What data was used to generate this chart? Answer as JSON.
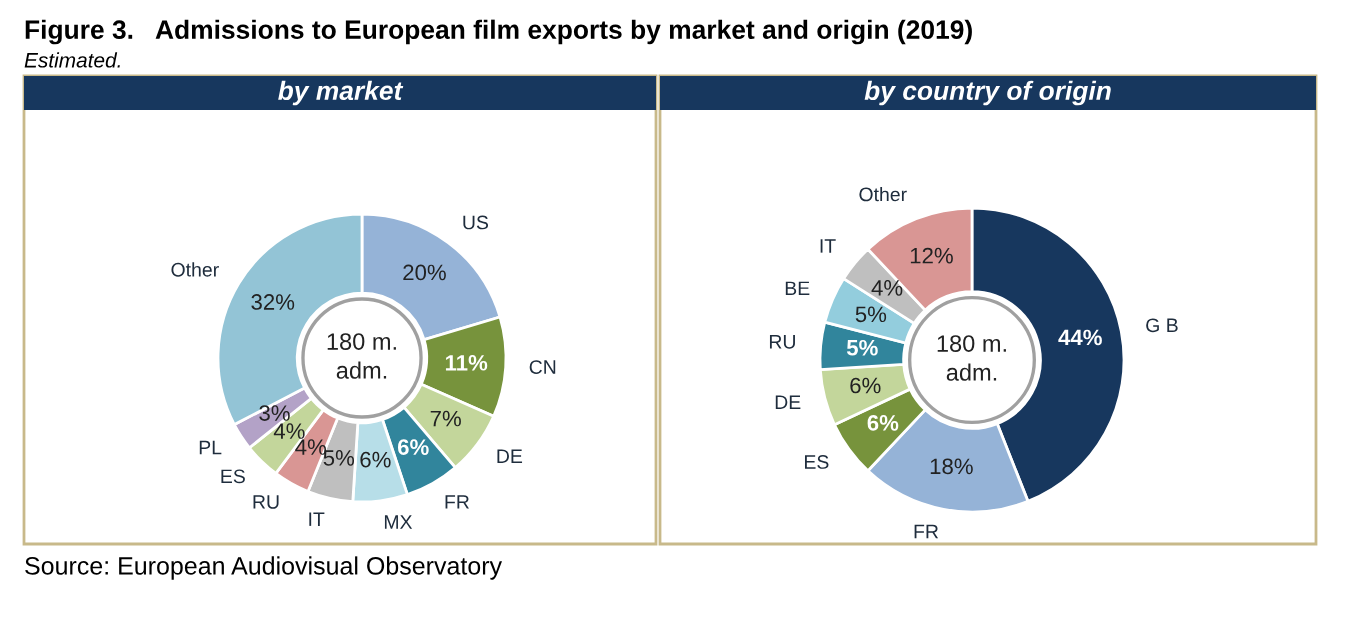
{
  "chart_data": [
    {
      "type": "donut",
      "title": "by market",
      "categories": [
        "US",
        "CN",
        "DE",
        "FR",
        "MX",
        "IT",
        "RU",
        "ES",
        "PL",
        "Other"
      ],
      "values": [
        20,
        11,
        7,
        6,
        6,
        5,
        4,
        4,
        3,
        32
      ],
      "value_labels": [
        "20%",
        "11%",
        "7%",
        "6%",
        "6%",
        "5%",
        "4%",
        "4%",
        "3%",
        "32%"
      ],
      "colors": [
        "#95b3d7",
        "#77933c",
        "#c3d69b",
        "#31859c",
        "#b7dee8",
        "#bfbfbf",
        "#d99694",
        "#c3d69b",
        "#b3a2c7",
        "#93c4d6"
      ],
      "annotations": [
        "Figure 3.   Admissions to European film exports by market and origin (2019)",
        "Estimated.",
        "Source: European Audiovisual Observatory",
        "180 m.\nadm."
      ]
    },
    {
      "type": "donut",
      "title": "by country of origin",
      "categories": [
        "G B",
        "FR",
        "ES",
        "DE",
        "RU",
        "BE",
        "IT",
        "Other"
      ],
      "values": [
        44,
        18,
        6,
        6,
        5,
        5,
        4,
        12
      ],
      "value_labels": [
        "44%",
        "18%",
        "6%",
        "6%",
        "5%",
        "5%",
        "4%",
        "12%"
      ],
      "colors": [
        "#17375e",
        "#95b3d7",
        "#77933c",
        "#c3d69b",
        "#31859c",
        "#93cddd",
        "#bfbfbf",
        "#d99694"
      ],
      "annotations": [
        "180 m.\nadm."
      ]
    }
  ]
}
